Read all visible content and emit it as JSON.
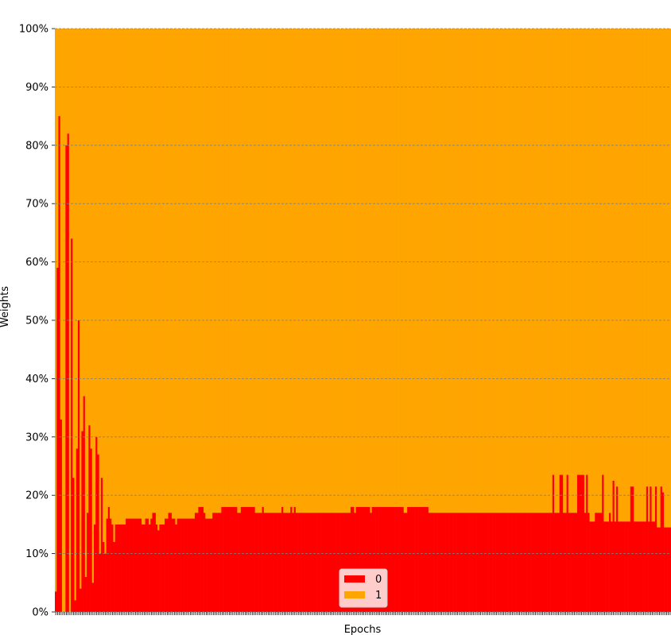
{
  "chart_data": {
    "type": "bar",
    "stacked": true,
    "normalized": true,
    "xlabel": "Epochs",
    "ylabel": "Weights",
    "ylim": [
      0,
      100
    ],
    "yticks": [
      "0%",
      "10%",
      "20%",
      "30%",
      "40%",
      "50%",
      "60%",
      "70%",
      "80%",
      "90%",
      "100%"
    ],
    "grid": "horizontal dashed",
    "legend": {
      "placement": "lower-center",
      "entries": [
        "0",
        "1"
      ]
    },
    "series": [
      {
        "name": "0",
        "color": "#ff0000",
        "values": [
          3.5,
          59,
          85,
          33,
          0,
          0,
          80,
          82,
          0,
          64,
          23,
          2,
          28,
          50,
          4,
          31,
          37,
          6,
          17,
          32,
          28,
          5,
          15,
          30,
          27,
          10,
          23,
          12,
          10,
          16,
          18,
          16,
          15,
          12,
          15,
          15,
          15,
          15,
          15,
          15,
          16,
          16,
          16,
          16,
          16,
          16,
          16,
          16,
          16,
          15,
          15,
          16,
          16,
          15,
          16,
          17,
          17,
          15,
          14,
          15,
          15,
          15,
          16,
          16,
          17,
          17,
          16,
          16,
          15,
          16,
          16,
          16,
          16,
          16,
          16,
          16,
          16,
          16,
          16,
          17,
          17,
          18,
          18,
          18,
          17,
          16,
          16,
          16,
          16,
          17,
          17,
          17,
          17,
          17,
          18,
          18,
          18,
          18,
          18,
          18,
          18,
          18,
          18,
          17,
          17,
          18,
          18,
          18,
          18,
          18,
          18,
          18,
          18,
          17,
          17,
          17,
          17,
          18,
          17,
          17,
          17,
          17,
          17,
          17,
          17,
          17,
          17,
          17,
          18,
          17,
          17,
          17,
          17,
          18,
          17,
          18,
          17,
          17,
          17,
          17,
          17,
          17,
          17,
          17,
          17,
          17,
          17,
          17,
          17,
          17,
          17,
          17,
          17,
          17,
          17,
          17,
          17,
          17,
          17,
          17,
          17,
          17,
          17,
          17,
          17,
          17,
          17,
          18,
          18,
          17,
          18,
          18,
          18,
          18,
          18,
          18,
          18,
          18,
          17,
          18,
          18,
          18,
          18,
          18,
          18,
          18,
          18,
          18,
          18,
          18,
          18,
          18,
          18,
          18,
          18,
          18,
          18,
          17,
          17,
          18,
          18,
          18,
          18,
          18,
          18,
          18,
          18,
          18,
          18,
          18,
          18,
          17,
          17,
          17,
          17,
          17,
          17,
          17,
          17,
          17,
          17,
          17,
          17,
          17,
          17,
          17,
          17,
          17,
          17,
          17,
          17,
          17,
          17,
          17,
          17,
          17,
          17,
          17,
          17,
          17,
          17,
          17,
          17,
          17,
          17,
          17,
          17,
          17,
          17,
          17,
          17,
          17,
          17,
          17,
          17,
          17,
          17,
          17,
          17,
          17,
          17,
          17,
          17,
          17,
          17,
          17,
          17,
          17,
          17,
          17,
          17,
          17,
          17,
          17,
          17,
          17,
          17,
          17,
          17,
          17,
          17,
          23.5,
          17,
          17,
          17,
          23.5,
          23.5,
          17,
          17,
          23.5,
          17,
          17,
          17,
          17,
          17,
          23.5,
          23.5,
          23.5,
          23.5,
          17,
          23.5,
          17,
          15.5,
          15.5,
          15.5,
          17,
          17,
          17,
          17,
          23.5,
          15.5,
          15.5,
          15.5,
          17,
          15.5,
          22.5,
          15.5,
          21.5,
          15.5,
          15.5,
          15.5,
          15.5,
          15.5,
          15.5,
          15.5,
          21.5,
          21.5,
          15.5,
          15.5,
          15.5,
          15.5,
          15.5,
          15.5,
          15.5,
          21.5,
          15.5,
          21.5,
          15.5,
          15.5,
          21.5,
          14.5,
          14.5,
          21.5,
          20.5,
          14.5,
          14.5,
          14.5,
          14.5
        ]
      },
      {
        "name": "1",
        "color": "#ffa500",
        "values": "100 minus series 0"
      }
    ]
  }
}
